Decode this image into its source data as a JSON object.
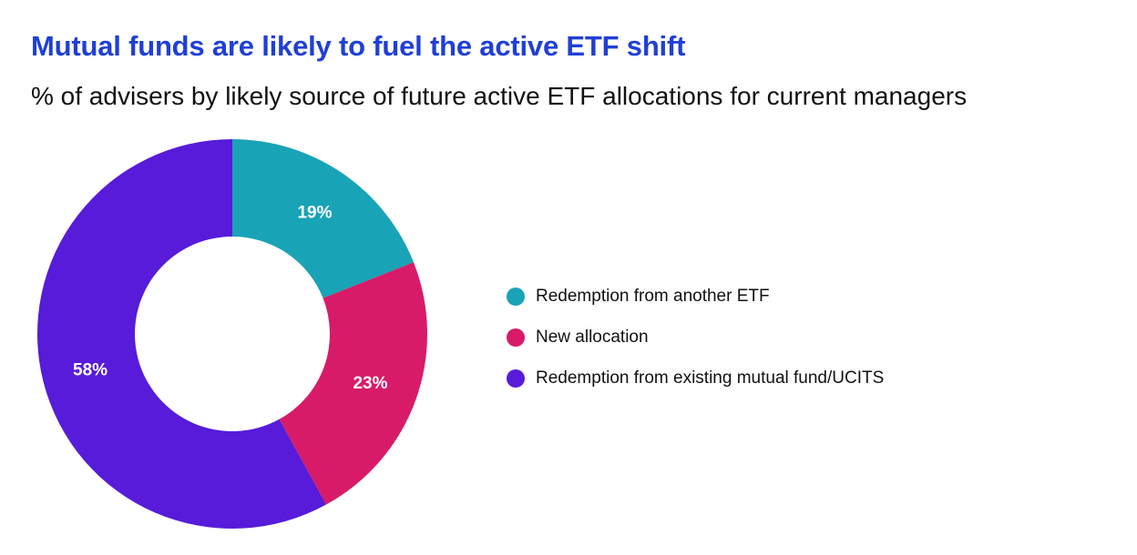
{
  "header": {
    "title": "Mutual funds are likely to fuel the active ETF shift",
    "subtitle": "% of advisers by likely source of future active ETF allocations for current managers"
  },
  "chart_data": {
    "type": "pie",
    "variant": "donut",
    "title": "Mutual funds are likely to fuel the active ETF shift",
    "subtitle": "% of advisers by likely source of future active ETF allocations for current managers",
    "unit": "%",
    "legend_position": "right",
    "slices": [
      {
        "label": "Redemption from another ETF",
        "value": 19,
        "value_label": "19%",
        "color": "#19a3b6"
      },
      {
        "label": "New allocation",
        "value": 23,
        "value_label": "23%",
        "color": "#d81b68"
      },
      {
        "label": "Redemption from existing mutual fund/UCITS",
        "value": 58,
        "value_label": "58%",
        "color": "#571bd9"
      }
    ]
  }
}
